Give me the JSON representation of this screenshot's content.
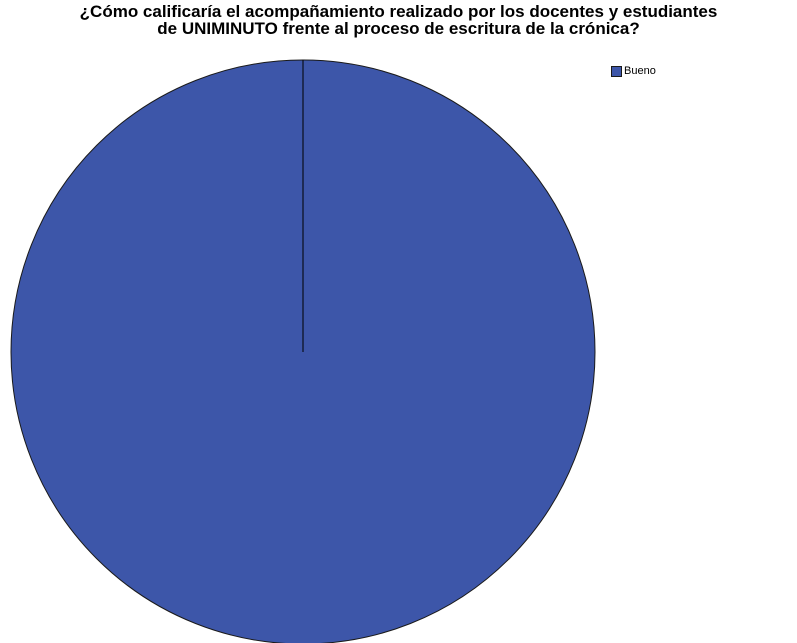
{
  "chart_data": {
    "type": "pie",
    "title_lines": [
      "¿Cómo calificaría el acompañamiento realizado por los docentes y estudiantes",
      "de UNIMINUTO frente al proceso de escritura de la crónica?"
    ],
    "categories": [
      "Bueno"
    ],
    "values": [
      100
    ],
    "colors": [
      "#3d56a9"
    ],
    "legend_position": "top-right",
    "start_angle": "12 o'clock"
  }
}
